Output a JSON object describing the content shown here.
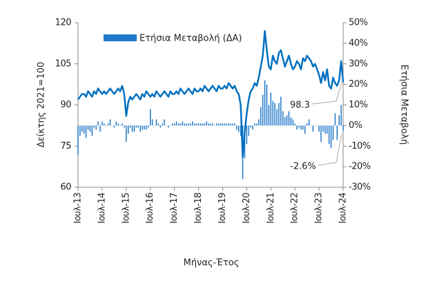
{
  "chart_data": {
    "type": "bar-line",
    "x_label": "Μήνας-Έτος",
    "y_label": "Δείκτης 2021=100",
    "y2_label": "Ετήσια Μεταβολή",
    "categories": [
      "Ιουλ-13",
      null,
      null,
      null,
      null,
      null,
      null,
      null,
      null,
      null,
      null,
      null,
      "Ιουλ-14",
      null,
      null,
      null,
      null,
      null,
      null,
      null,
      null,
      null,
      null,
      null,
      "Ιουλ-15",
      null,
      null,
      null,
      null,
      null,
      null,
      null,
      null,
      null,
      null,
      null,
      "Ιουλ-16",
      null,
      null,
      null,
      null,
      null,
      null,
      null,
      null,
      null,
      null,
      null,
      "Ιουλ-17",
      null,
      null,
      null,
      null,
      null,
      null,
      null,
      null,
      null,
      null,
      null,
      "Ιουλ-18",
      null,
      null,
      null,
      null,
      null,
      null,
      null,
      null,
      null,
      null,
      null,
      "Ιουλ-19",
      null,
      null,
      null,
      null,
      null,
      null,
      null,
      null,
      null,
      null,
      null,
      "Ιουλ-20",
      null,
      null,
      null,
      null,
      null,
      null,
      null,
      null,
      null,
      null,
      null,
      "Ιουλ-21",
      null,
      null,
      null,
      null,
      null,
      null,
      null,
      null,
      null,
      null,
      null,
      "Ιουλ-22",
      null,
      null,
      null,
      null,
      null,
      null,
      null,
      null,
      null,
      null,
      null,
      "Ιουλ-23",
      null,
      null,
      null,
      null,
      null,
      null,
      null,
      null,
      null,
      null,
      null,
      "Ιουλ-24"
    ],
    "series": [
      {
        "kind": "line",
        "axis": "y",
        "color": "#0070c0",
        "values": [
          92,
          93,
          94,
          94,
          93,
          95,
          94,
          93,
          95,
          94,
          96,
          95,
          94,
          95,
          94,
          95,
          96,
          95,
          94,
          95,
          96,
          95,
          97,
          94,
          86,
          91,
          93,
          92,
          93,
          94,
          93,
          92,
          94,
          93,
          95,
          94,
          93,
          94,
          93,
          95,
          94,
          93,
          94,
          95,
          94,
          93,
          95,
          94,
          94,
          95,
          94,
          96,
          95,
          94,
          95,
          96,
          95,
          94,
          96,
          95,
          95,
          96,
          95,
          97,
          96,
          95,
          96,
          97,
          96,
          95,
          97,
          96,
          96,
          97,
          96,
          98,
          97,
          96,
          97,
          95,
          94,
          90,
          71,
          80,
          87,
          92,
          95,
          96,
          98,
          97,
          100,
          104,
          108,
          117,
          110,
          104,
          103,
          108,
          106,
          105,
          109,
          110,
          107,
          104,
          106,
          108,
          105,
          103,
          104,
          106,
          105,
          103,
          107,
          106,
          108,
          107,
          106,
          104,
          105,
          103,
          101,
          98,
          102,
          99,
          103,
          97,
          96,
          100,
          98,
          97,
          99,
          106,
          98.3
        ],
        "value_labels": [
          null,
          null,
          null,
          null,
          null,
          null,
          null,
          null,
          null,
          null,
          null,
          null,
          null,
          null,
          null,
          null,
          null,
          null,
          null,
          null,
          null,
          null,
          null,
          null,
          null,
          null,
          null,
          null,
          null,
          null,
          null,
          null,
          null,
          null,
          null,
          null,
          null,
          null,
          null,
          null,
          null,
          null,
          null,
          null,
          null,
          null,
          null,
          null,
          null,
          null,
          null,
          null,
          null,
          null,
          null,
          null,
          null,
          null,
          null,
          null,
          null,
          null,
          null,
          null,
          null,
          null,
          null,
          null,
          null,
          null,
          null,
          null,
          null,
          null,
          null,
          null,
          null,
          null,
          null,
          null,
          null,
          null,
          null,
          null,
          null,
          null,
          null,
          null,
          null,
          null,
          null,
          null,
          null,
          null,
          null,
          null,
          null,
          null,
          null,
          null,
          null,
          null,
          null,
          null,
          null,
          null,
          null,
          null,
          null,
          null,
          null,
          null,
          null,
          null,
          null,
          null,
          null,
          null,
          null,
          null,
          null,
          null,
          null,
          null,
          null,
          null,
          null,
          null,
          null,
          null,
          null,
          null,
          "98.3"
        ]
      },
      {
        "kind": "bar",
        "axis": "y2",
        "name": "Ετήσια Μεταβολή (ΔΑ)",
        "color": "#1f78c8",
        "values": [
          -14,
          -5,
          -3,
          -4,
          -6,
          -2,
          -3,
          -5,
          -1,
          -2,
          2,
          -3,
          2,
          1,
          0,
          1,
          3,
          0,
          -1,
          2,
          1,
          0,
          1,
          -1,
          -8,
          -4,
          -1,
          -3,
          -3,
          -1,
          -1,
          -3,
          -2,
          -2,
          -2,
          -1,
          8,
          3,
          0,
          3,
          1,
          -1,
          1,
          3,
          0,
          -1,
          0,
          1,
          1,
          2,
          1,
          1,
          2,
          1,
          1,
          1,
          1,
          2,
          1,
          1,
          1,
          1,
          1,
          1,
          2,
          1,
          1,
          1,
          0,
          1,
          1,
          1,
          1,
          1,
          1,
          1,
          1,
          1,
          1,
          -2,
          -3,
          -5,
          -26,
          -16,
          -9,
          -5,
          -1,
          -2,
          1,
          1,
          3,
          9,
          15,
          22,
          20,
          10,
          16,
          12,
          11,
          8,
          11,
          14,
          7,
          4,
          5,
          7,
          4,
          3,
          1,
          -2,
          -1,
          -2,
          -2,
          -4,
          1,
          3,
          0,
          -3,
          0,
          0,
          -3,
          -8,
          -3,
          -4,
          -4,
          -9,
          -11,
          -7,
          6,
          -7,
          5,
          10,
          -2.6
        ],
        "value_labels": [
          null,
          null,
          null,
          null,
          null,
          null,
          null,
          null,
          null,
          null,
          null,
          null,
          null,
          null,
          null,
          null,
          null,
          null,
          null,
          null,
          null,
          null,
          null,
          null,
          null,
          null,
          null,
          null,
          null,
          null,
          null,
          null,
          null,
          null,
          null,
          null,
          null,
          null,
          null,
          null,
          null,
          null,
          null,
          null,
          null,
          null,
          null,
          null,
          null,
          null,
          null,
          null,
          null,
          null,
          null,
          null,
          null,
          null,
          null,
          null,
          null,
          null,
          null,
          null,
          null,
          null,
          null,
          null,
          null,
          null,
          null,
          null,
          null,
          null,
          null,
          null,
          null,
          null,
          null,
          null,
          null,
          null,
          null,
          null,
          null,
          null,
          null,
          null,
          null,
          null,
          null,
          null,
          null,
          null,
          null,
          null,
          null,
          null,
          null,
          null,
          null,
          null,
          null,
          null,
          null,
          null,
          null,
          null,
          null,
          null,
          null,
          null,
          null,
          null,
          null,
          null,
          null,
          null,
          null,
          null,
          null,
          null,
          null,
          null,
          null,
          null,
          null,
          null,
          null,
          null,
          null,
          null,
          "-2.6%"
        ]
      }
    ],
    "ylim": [
      60,
      120
    ],
    "yticks": [
      60,
      75,
      90,
      105,
      120
    ],
    "y2lim": [
      -30,
      50
    ],
    "y2ticks": [
      {
        "value": -30,
        "label": "-30%"
      },
      {
        "value": -20,
        "label": "-20%"
      },
      {
        "value": -10,
        "label": "-10%"
      },
      {
        "value": 0,
        "label": "0%"
      },
      {
        "value": 10,
        "label": "10%"
      },
      {
        "value": 20,
        "label": "20%"
      },
      {
        "value": 30,
        "label": "30%"
      },
      {
        "value": 40,
        "label": "40%"
      },
      {
        "value": 50,
        "label": "50%"
      }
    ],
    "legend": "top"
  }
}
